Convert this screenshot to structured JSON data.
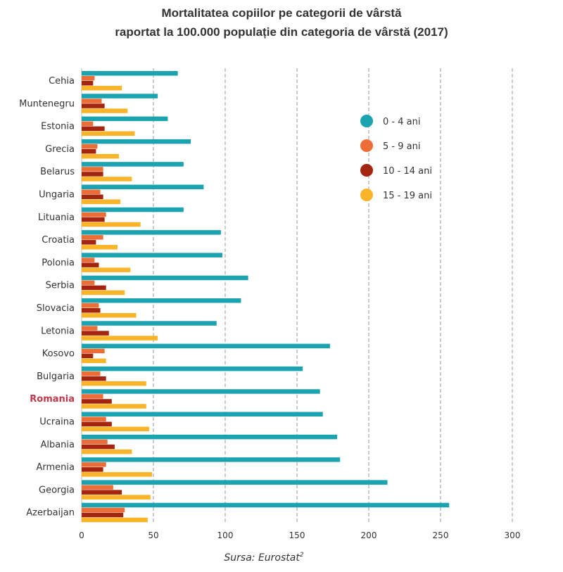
{
  "chart_data": {
    "type": "bar",
    "orientation": "horizontal",
    "title": "Mortalitatea copiilor pe categorii de vârstă",
    "subtitle": "raportat la 100.000 populație din categoria de vârstă (2017)",
    "xlabel": "",
    "ylabel": "",
    "xlim": [
      0,
      300
    ],
    "xticks": [
      "0",
      "50",
      "100",
      "150",
      "200",
      "250",
      "300"
    ],
    "grid": "vertical dashed",
    "legend_position": "top-right",
    "source_prefix": "Sursa: Eurostat",
    "source_footnote": "2",
    "highlight_category": "Romania",
    "categories": [
      "Cehia",
      "Muntenegru",
      "Estonia",
      "Grecia",
      "Belarus",
      "Ungaria",
      "Lituania",
      "Croatia",
      "Polonia",
      "Serbia",
      "Slovacia",
      "Letonia",
      "Kosovo",
      "Bulgaria",
      "Romania",
      "Ucraina",
      "Albania",
      "Armenia",
      "Georgia",
      "Azerbaijan"
    ],
    "series": [
      {
        "name": "0 - 4 ani",
        "color": "#1ba3b0",
        "values": [
          67,
          53,
          60,
          76,
          71,
          85,
          71,
          97,
          98,
          116,
          111,
          94,
          173,
          154,
          166,
          168,
          178,
          180,
          213,
          256
        ]
      },
      {
        "name": "5 - 9 ani",
        "color": "#ec6d36",
        "values": [
          9,
          14,
          8,
          11,
          15,
          13,
          17,
          15,
          9,
          9,
          12,
          11,
          16,
          13,
          15,
          17,
          18,
          17,
          22,
          30
        ]
      },
      {
        "name": "10 - 14 ani",
        "color": "#a3250f",
        "values": [
          8,
          16,
          16,
          10,
          15,
          15,
          16,
          10,
          12,
          17,
          13,
          19,
          8,
          17,
          21,
          21,
          23,
          15,
          28,
          29
        ]
      },
      {
        "name": "15 - 19 ani",
        "color": "#f9b42a",
        "values": [
          28,
          32,
          37,
          26,
          35,
          27,
          41,
          25,
          34,
          30,
          38,
          53,
          17,
          45,
          45,
          47,
          35,
          49,
          48,
          46
        ]
      }
    ]
  }
}
